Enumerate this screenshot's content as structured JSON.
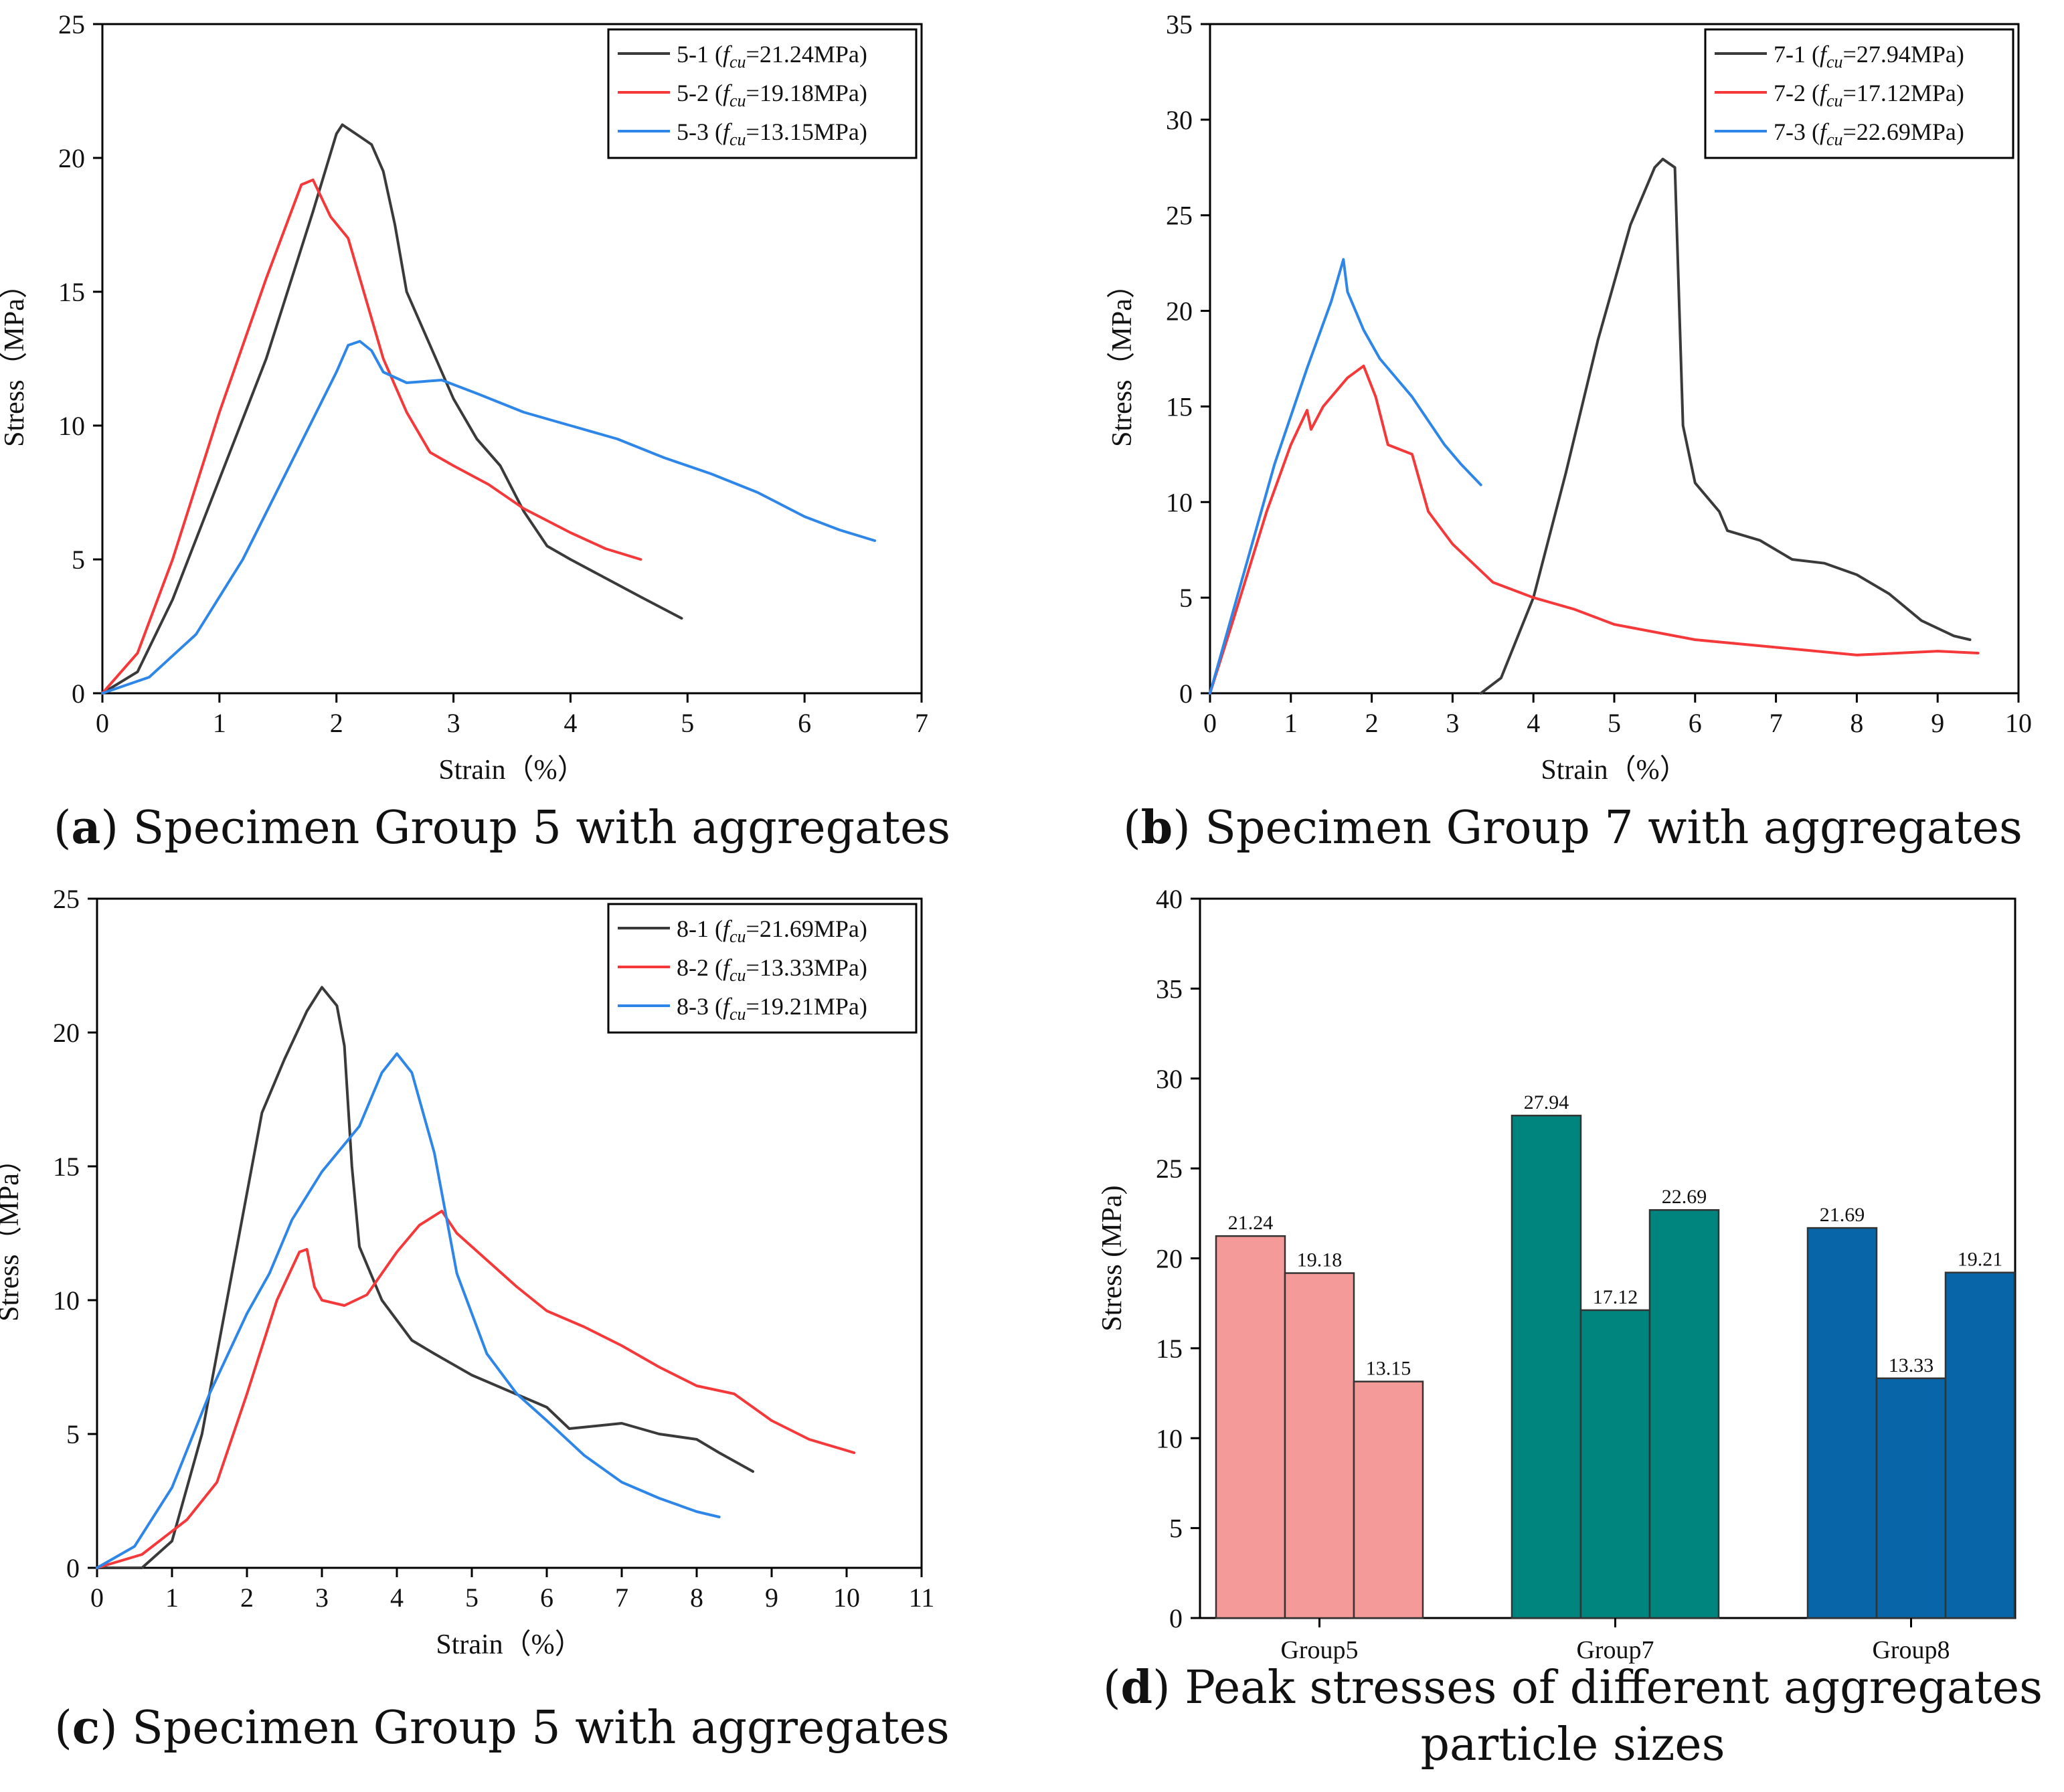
{
  "colors": {
    "black": "#3a3a3a",
    "red": "#f5393a",
    "blue": "#2e86e8",
    "pink": "#f49a98",
    "teal": "#00857e",
    "navy": "#0866a8",
    "axis": "#000000"
  },
  "chart_data": [
    {
      "id": "a",
      "type": "line",
      "caption": {
        "letter": "a",
        "text": " Specimen Group 5 with aggregates"
      },
      "xlabel": "Strain（%）",
      "ylabel": "Stress（MPa）",
      "xlim": [
        0,
        7
      ],
      "ylim": [
        0,
        25
      ],
      "xticks": [
        0,
        1,
        2,
        3,
        4,
        5,
        6,
        7
      ],
      "yticks": [
        0,
        5,
        10,
        15,
        20,
        25
      ],
      "legend_position": "top-right",
      "series": [
        {
          "name": "5-1",
          "label_sub": "f",
          "label_subsub": "cu",
          "label_value": "=21.24MPa)",
          "color": "black",
          "points": [
            [
              0,
              0
            ],
            [
              0.3,
              0.8
            ],
            [
              0.6,
              3.5
            ],
            [
              1.0,
              8.0
            ],
            [
              1.4,
              12.5
            ],
            [
              1.8,
              18.0
            ],
            [
              2.0,
              20.9
            ],
            [
              2.05,
              21.24
            ],
            [
              2.2,
              20.8
            ],
            [
              2.3,
              20.5
            ],
            [
              2.4,
              19.5
            ],
            [
              2.5,
              17.5
            ],
            [
              2.6,
              15.0
            ],
            [
              2.8,
              13.0
            ],
            [
              3.0,
              11.0
            ],
            [
              3.2,
              9.5
            ],
            [
              3.4,
              8.5
            ],
            [
              3.6,
              6.8
            ],
            [
              3.8,
              5.5
            ],
            [
              4.0,
              5.0
            ],
            [
              4.3,
              4.3
            ],
            [
              4.6,
              3.6
            ],
            [
              4.95,
              2.8
            ]
          ]
        },
        {
          "name": "5-2",
          "label_sub": "f",
          "label_subsub": "cu",
          "label_value": "=19.18MPa)",
          "color": "red",
          "points": [
            [
              0,
              0
            ],
            [
              0.3,
              1.5
            ],
            [
              0.6,
              5.0
            ],
            [
              1.0,
              10.5
            ],
            [
              1.4,
              15.5
            ],
            [
              1.7,
              19.0
            ],
            [
              1.8,
              19.18
            ],
            [
              1.95,
              17.8
            ],
            [
              2.1,
              17.0
            ],
            [
              2.2,
              15.5
            ],
            [
              2.4,
              12.5
            ],
            [
              2.6,
              10.5
            ],
            [
              2.8,
              9.0
            ],
            [
              3.0,
              8.5
            ],
            [
              3.3,
              7.8
            ],
            [
              3.6,
              6.9
            ],
            [
              4.0,
              6.0
            ],
            [
              4.3,
              5.4
            ],
            [
              4.6,
              5.0
            ]
          ]
        },
        {
          "name": "5-3",
          "label_sub": "f",
          "label_subsub": "cu",
          "label_value": "=13.15MPa)",
          "color": "blue",
          "points": [
            [
              0,
              0
            ],
            [
              0.4,
              0.6
            ],
            [
              0.8,
              2.2
            ],
            [
              1.2,
              5.0
            ],
            [
              1.6,
              8.5
            ],
            [
              2.0,
              12.0
            ],
            [
              2.1,
              13.0
            ],
            [
              2.2,
              13.15
            ],
            [
              2.3,
              12.8
            ],
            [
              2.4,
              12.0
            ],
            [
              2.6,
              11.6
            ],
            [
              2.9,
              11.7
            ],
            [
              3.2,
              11.2
            ],
            [
              3.6,
              10.5
            ],
            [
              4.0,
              10.0
            ],
            [
              4.4,
              9.5
            ],
            [
              4.8,
              8.8
            ],
            [
              5.2,
              8.2
            ],
            [
              5.6,
              7.5
            ],
            [
              6.0,
              6.6
            ],
            [
              6.3,
              6.1
            ],
            [
              6.6,
              5.7
            ]
          ]
        }
      ]
    },
    {
      "id": "b",
      "type": "line",
      "caption": {
        "letter": "b",
        "text": " Specimen Group 7 with aggregates"
      },
      "xlabel": "Strain（%）",
      "ylabel": "Stress（MPa）",
      "xlim": [
        0,
        10
      ],
      "ylim": [
        0,
        35
      ],
      "xticks": [
        0,
        1,
        2,
        3,
        4,
        5,
        6,
        7,
        8,
        9,
        10
      ],
      "yticks": [
        0,
        5,
        10,
        15,
        20,
        25,
        30,
        35
      ],
      "legend_position": "top-right",
      "series": [
        {
          "name": "7-1",
          "label_sub": "f",
          "label_subsub": "cu",
          "label_value": "=27.94MPa)",
          "color": "black",
          "points": [
            [
              3.35,
              0
            ],
            [
              3.6,
              0.8
            ],
            [
              4.0,
              5.0
            ],
            [
              4.4,
              11.5
            ],
            [
              4.8,
              18.5
            ],
            [
              5.2,
              24.5
            ],
            [
              5.5,
              27.5
            ],
            [
              5.6,
              27.94
            ],
            [
              5.75,
              27.5
            ],
            [
              5.85,
              14.0
            ],
            [
              6.0,
              11.0
            ],
            [
              6.3,
              9.5
            ],
            [
              6.4,
              8.5
            ],
            [
              6.8,
              8.0
            ],
            [
              7.2,
              7.0
            ],
            [
              7.6,
              6.8
            ],
            [
              8.0,
              6.2
            ],
            [
              8.4,
              5.2
            ],
            [
              8.8,
              3.8
            ],
            [
              9.2,
              3.0
            ],
            [
              9.4,
              2.8
            ]
          ]
        },
        {
          "name": "7-2",
          "label_sub": "f",
          "label_subsub": "cu",
          "label_value": "=17.12MPa)",
          "color": "red",
          "points": [
            [
              0,
              0
            ],
            [
              0.3,
              4.0
            ],
            [
              0.7,
              9.5
            ],
            [
              1.0,
              13.0
            ],
            [
              1.2,
              14.8
            ],
            [
              1.25,
              13.8
            ],
            [
              1.4,
              15.0
            ],
            [
              1.7,
              16.5
            ],
            [
              1.9,
              17.12
            ],
            [
              2.05,
              15.5
            ],
            [
              2.2,
              13.0
            ],
            [
              2.5,
              12.5
            ],
            [
              2.7,
              9.5
            ],
            [
              3.0,
              7.8
            ],
            [
              3.5,
              5.8
            ],
            [
              4.0,
              5.0
            ],
            [
              4.5,
              4.4
            ],
            [
              5.0,
              3.6
            ],
            [
              6.0,
              2.8
            ],
            [
              7.0,
              2.4
            ],
            [
              8.0,
              2.0
            ],
            [
              9.0,
              2.2
            ],
            [
              9.5,
              2.1
            ]
          ]
        },
        {
          "name": "7-3",
          "label_sub": "f",
          "label_subsub": "cu",
          "label_value": "=22.69MPa)",
          "color": "blue",
          "points": [
            [
              0,
              0
            ],
            [
              0.4,
              6.0
            ],
            [
              0.8,
              12.0
            ],
            [
              1.2,
              17.0
            ],
            [
              1.5,
              20.5
            ],
            [
              1.65,
              22.69
            ],
            [
              1.7,
              21.0
            ],
            [
              1.9,
              19.0
            ],
            [
              2.1,
              17.5
            ],
            [
              2.5,
              15.5
            ],
            [
              2.9,
              13.0
            ],
            [
              3.1,
              12.0
            ],
            [
              3.35,
              10.9
            ]
          ]
        }
      ]
    },
    {
      "id": "c",
      "type": "line",
      "caption": {
        "letter": "c",
        "text": " Specimen Group 5 with aggregates"
      },
      "xlabel": "Strain（%）",
      "ylabel": "Stress（MPa）",
      "xlim": [
        0,
        11
      ],
      "ylim": [
        0,
        25
      ],
      "xticks": [
        0,
        1,
        2,
        3,
        4,
        5,
        6,
        7,
        8,
        9,
        10,
        11
      ],
      "yticks": [
        0,
        5,
        10,
        15,
        20,
        25
      ],
      "legend_position": "top-right",
      "series": [
        {
          "name": "8-1",
          "label_sub": "f",
          "label_subsub": "cu",
          "label_value": "=21.69MPa)",
          "color": "black",
          "points": [
            [
              0,
              0
            ],
            [
              0.6,
              0
            ],
            [
              1.0,
              1.0
            ],
            [
              1.4,
              5.0
            ],
            [
              1.8,
              11.0
            ],
            [
              2.2,
              17.0
            ],
            [
              2.5,
              19.0
            ],
            [
              2.8,
              20.8
            ],
            [
              3.0,
              21.69
            ],
            [
              3.2,
              21.0
            ],
            [
              3.3,
              19.5
            ],
            [
              3.4,
              15.0
            ],
            [
              3.5,
              12.0
            ],
            [
              3.8,
              10.0
            ],
            [
              4.2,
              8.5
            ],
            [
              4.5,
              8.0
            ],
            [
              5.0,
              7.2
            ],
            [
              5.5,
              6.6
            ],
            [
              6.0,
              6.0
            ],
            [
              6.3,
              5.2
            ],
            [
              7.0,
              5.4
            ],
            [
              7.5,
              5.0
            ],
            [
              8.0,
              4.8
            ],
            [
              8.3,
              4.3
            ],
            [
              8.75,
              3.6
            ]
          ]
        },
        {
          "name": "8-2",
          "label_sub": "f",
          "label_subsub": "cu",
          "label_value": "=13.33MPa)",
          "color": "red",
          "points": [
            [
              0,
              0
            ],
            [
              0.6,
              0.5
            ],
            [
              1.2,
              1.8
            ],
            [
              1.6,
              3.2
            ],
            [
              2.0,
              6.5
            ],
            [
              2.4,
              10.0
            ],
            [
              2.7,
              11.8
            ],
            [
              2.8,
              11.9
            ],
            [
              2.9,
              10.5
            ],
            [
              3.0,
              10.0
            ],
            [
              3.3,
              9.8
            ],
            [
              3.6,
              10.2
            ],
            [
              4.0,
              11.8
            ],
            [
              4.3,
              12.8
            ],
            [
              4.6,
              13.33
            ],
            [
              4.8,
              12.5
            ],
            [
              5.2,
              11.5
            ],
            [
              5.6,
              10.5
            ],
            [
              6.0,
              9.6
            ],
            [
              6.5,
              9.0
            ],
            [
              7.0,
              8.3
            ],
            [
              7.5,
              7.5
            ],
            [
              8.0,
              6.8
            ],
            [
              8.5,
              6.5
            ],
            [
              9.0,
              5.5
            ],
            [
              9.5,
              4.8
            ],
            [
              10.1,
              4.3
            ]
          ]
        },
        {
          "name": "8-3",
          "label_sub": "f",
          "label_subsub": "cu",
          "label_value": "=19.21MPa)",
          "color": "blue",
          "points": [
            [
              0,
              0
            ],
            [
              0.5,
              0.8
            ],
            [
              1.0,
              3.0
            ],
            [
              1.5,
              6.5
            ],
            [
              2.0,
              9.5
            ],
            [
              2.3,
              11.0
            ],
            [
              2.6,
              13.0
            ],
            [
              3.0,
              14.8
            ],
            [
              3.5,
              16.5
            ],
            [
              3.8,
              18.5
            ],
            [
              4.0,
              19.21
            ],
            [
              4.2,
              18.5
            ],
            [
              4.5,
              15.5
            ],
            [
              4.8,
              11.0
            ],
            [
              5.2,
              8.0
            ],
            [
              5.6,
              6.5
            ],
            [
              6.0,
              5.5
            ],
            [
              6.5,
              4.2
            ],
            [
              7.0,
              3.2
            ],
            [
              7.5,
              2.6
            ],
            [
              8.0,
              2.1
            ],
            [
              8.3,
              1.9
            ]
          ]
        }
      ]
    },
    {
      "id": "d",
      "type": "bar",
      "caption": {
        "letter": "d",
        "text": " Peak stresses of different aggregates particle sizes"
      },
      "ylabel": "Stress (MPa)",
      "ylim": [
        0,
        40
      ],
      "yticks": [
        0,
        5,
        10,
        15,
        20,
        25,
        30,
        35,
        40
      ],
      "categories": [
        "Group5",
        "Group7",
        "Group8"
      ],
      "groups": [
        {
          "category": "Group5",
          "color": "pink",
          "values": [
            21.24,
            19.18,
            13.15
          ],
          "labels": [
            "21.24",
            "19.18",
            "13.15"
          ]
        },
        {
          "category": "Group7",
          "color": "teal",
          "values": [
            27.94,
            17.12,
            22.69
          ],
          "labels": [
            "27.94",
            "17.12",
            "22.69"
          ]
        },
        {
          "category": "Group8",
          "color": "navy",
          "values": [
            21.69,
            13.33,
            19.21
          ],
          "labels": [
            "21.69",
            "13.33",
            "19.21"
          ]
        }
      ]
    }
  ]
}
